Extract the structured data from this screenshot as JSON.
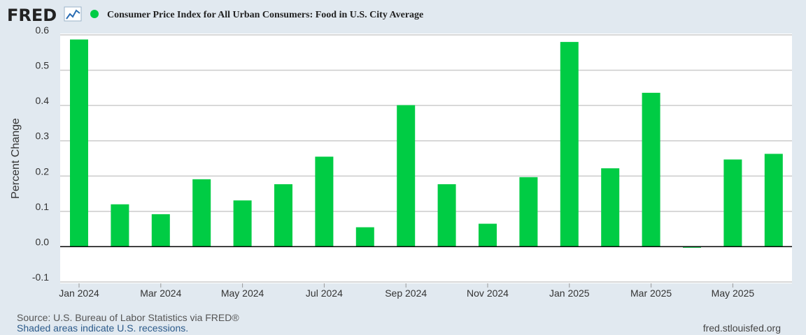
{
  "header": {
    "logo_text": "FRED",
    "logo_icon": "line-chart-icon",
    "series_title": "Consumer Price Index for All Urban Consumers: Food in U.S. City Average",
    "series_color": "#00cc44"
  },
  "chart_data": {
    "type": "bar",
    "title": "Consumer Price Index for All Urban Consumers: Food in U.S. City Average",
    "ylabel": "Percent Change",
    "xlabel": "",
    "ylim": [
      -0.1,
      0.6
    ],
    "yticks": [
      "0.6",
      "0.5",
      "0.4",
      "0.3",
      "0.2",
      "0.1",
      "0.0",
      "-0.1"
    ],
    "categories": [
      "Jan 2024",
      "Feb 2024",
      "Mar 2024",
      "Apr 2024",
      "May 2024",
      "Jun 2024",
      "Jul 2024",
      "Aug 2024",
      "Sep 2024",
      "Oct 2024",
      "Nov 2024",
      "Dec 2024",
      "Jan 2025",
      "Feb 2025",
      "Mar 2025",
      "Apr 2025",
      "May 2025",
      "Jun 2025"
    ],
    "xtick_labels": [
      "Jan 2024",
      "Mar 2024",
      "May 2024",
      "Jul 2024",
      "Sep 2024",
      "Nov 2024",
      "Jan 2025",
      "Mar 2025",
      "May 2025"
    ],
    "values": [
      0.587,
      0.12,
      0.092,
      0.191,
      0.131,
      0.177,
      0.255,
      0.055,
      0.401,
      0.177,
      0.065,
      0.197,
      0.58,
      0.222,
      0.436,
      -0.003,
      0.247,
      0.263
    ],
    "bar_color": "#00cc44",
    "grid": true,
    "legend": "top-left"
  },
  "footer": {
    "source": "Source: U.S. Bureau of Labor Statistics via FRED®",
    "recession_note": "Shaded areas indicate U.S. recessions.",
    "site": "fred.stlouisfed.org"
  }
}
